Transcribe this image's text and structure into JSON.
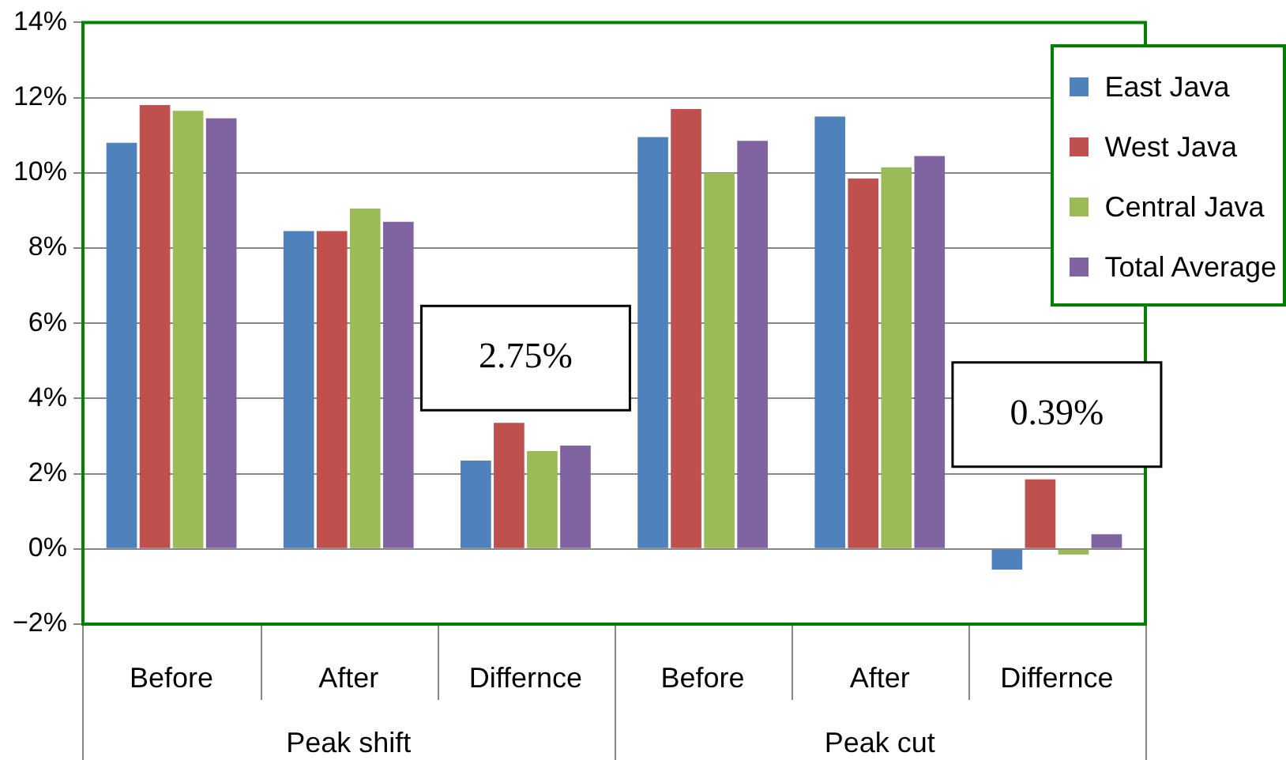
{
  "chart_data": {
    "type": "bar",
    "categories": [
      "Before",
      "After",
      "Differnce",
      "Before",
      "After",
      "Differnce"
    ],
    "series": [
      {
        "name": "East Java",
        "color": "#4f81bd",
        "values": [
          10.8,
          8.45,
          2.35,
          10.95,
          11.5,
          -0.55
        ]
      },
      {
        "name": "West Java",
        "color": "#c0504d",
        "values": [
          11.8,
          8.45,
          3.35,
          11.7,
          9.85,
          1.85
        ]
      },
      {
        "name": "Central Java",
        "color": "#9bbb59",
        "values": [
          11.65,
          9.05,
          2.6,
          10.0,
          10.15,
          -0.15
        ]
      },
      {
        "name": "Total Average",
        "color": "#8064a2",
        "values": [
          11.45,
          8.7,
          2.75,
          10.85,
          10.45,
          0.39
        ]
      }
    ],
    "ylim": [
      -2,
      14
    ],
    "yticks": [
      {
        "value": -2,
        "label": "−2%"
      },
      {
        "value": 0,
        "label": "0%"
      },
      {
        "value": 2,
        "label": "2%"
      },
      {
        "value": 4,
        "label": "4%"
      },
      {
        "value": 6,
        "label": "6%"
      },
      {
        "value": 8,
        "label": "8%"
      },
      {
        "value": 10,
        "label": "10%"
      },
      {
        "value": 12,
        "label": "12%"
      },
      {
        "value": 14,
        "label": "14%"
      }
    ],
    "grid": "y",
    "legend": "top right",
    "annotations": [
      "Peak shift",
      "Peak cut",
      "2.75%",
      "0.39%"
    ]
  }
}
